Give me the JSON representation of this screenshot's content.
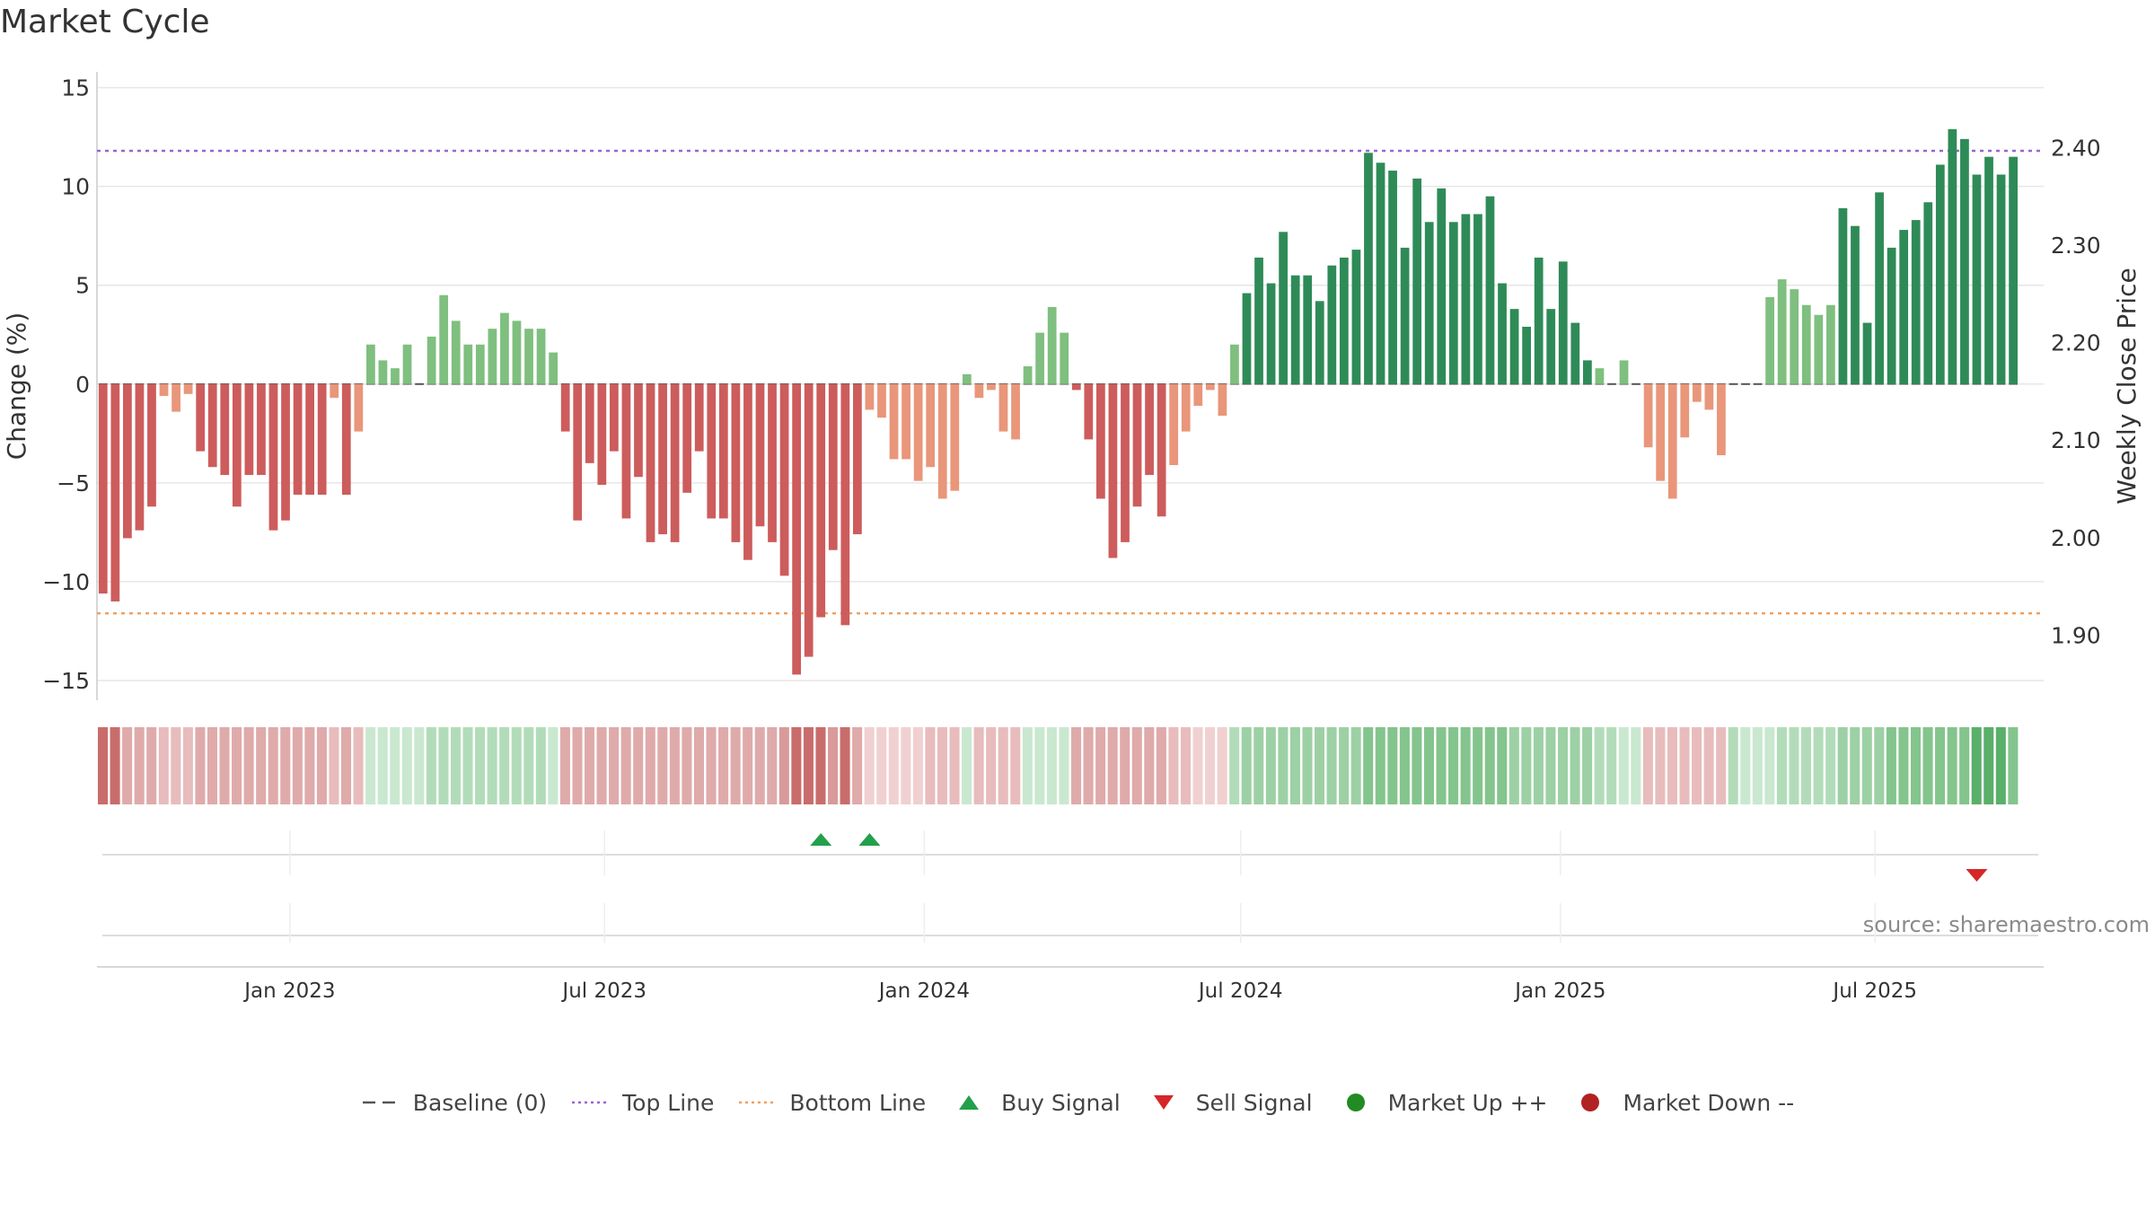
{
  "title": "Market Cycle",
  "source": "source: sharemaestro.com",
  "chart_data": {
    "type": "bar",
    "title": "Market Cycle",
    "ylabel_left": "Change (%)",
    "ylabel_right": "Weekly Close Price",
    "ylim_left": [
      -16,
      15.8
    ],
    "yticks_left": [
      15,
      10,
      5,
      0,
      -5,
      -10,
      -15
    ],
    "ytick_labels_left": [
      "15",
      "10",
      "5",
      "0",
      "−5",
      "−10",
      "−15"
    ],
    "ylim_right": [
      1.833,
      2.478
    ],
    "yticks_right": [
      2.4,
      2.3,
      2.2,
      2.1,
      2.0,
      1.9
    ],
    "ytick_labels_right": [
      "2.40",
      "2.30",
      "2.20",
      "2.10",
      "2.00",
      "1.90"
    ],
    "x_range": [
      "2022-09-12",
      "2025-10-06"
    ],
    "xticks": [
      "2023-01-01",
      "2023-07-01",
      "2024-01-01",
      "2024-07-01",
      "2025-01-01",
      "2025-07-01"
    ],
    "xtick_labels": [
      "Jan 2023",
      "Jul 2023",
      "Jan 2024",
      "Jul 2024",
      "Jan 2025",
      "Jul 2025"
    ],
    "start_week": "2022-09-12",
    "top_line": 11.8,
    "bottom_line": -11.6,
    "baseline": 0,
    "values": [
      -10.6,
      -11.0,
      -7.8,
      -7.4,
      -6.2,
      -0.6,
      -1.4,
      -0.5,
      -3.4,
      -4.2,
      -4.6,
      -6.2,
      -4.6,
      -4.6,
      -7.4,
      -6.9,
      -5.6,
      -5.6,
      -5.6,
      -0.7,
      -5.6,
      -2.4,
      2.0,
      1.2,
      0.8,
      2.0,
      0.0,
      2.4,
      4.5,
      3.2,
      2.0,
      2.0,
      2.8,
      3.6,
      3.2,
      2.8,
      2.8,
      1.6,
      -2.4,
      -6.9,
      -4.0,
      -5.1,
      -3.4,
      -6.8,
      -4.7,
      -8.0,
      -7.6,
      -8.0,
      -5.5,
      -3.4,
      -6.8,
      -6.8,
      -8.0,
      -8.9,
      -7.2,
      -8.0,
      -9.7,
      -14.7,
      -13.8,
      -11.8,
      -8.4,
      -12.2,
      -7.6,
      -1.3,
      -1.7,
      -3.8,
      -3.8,
      -4.9,
      -4.2,
      -5.8,
      -5.4,
      0.5,
      -0.7,
      -0.3,
      -2.4,
      -2.8,
      0.9,
      2.6,
      3.9,
      2.6,
      -0.3,
      -2.8,
      -5.8,
      -8.8,
      -8.0,
      -6.2,
      -4.6,
      -6.7,
      -4.1,
      -2.4,
      -1.1,
      -0.3,
      -1.6,
      2.0,
      4.6,
      6.4,
      5.1,
      7.7,
      5.5,
      5.5,
      4.2,
      6.0,
      6.4,
      6.8,
      11.7,
      11.2,
      10.8,
      6.9,
      10.4,
      8.2,
      9.9,
      8.2,
      8.6,
      8.6,
      9.5,
      5.1,
      3.8,
      2.9,
      6.4,
      3.8,
      6.2,
      3.1,
      1.2,
      0.8,
      0.0,
      1.2,
      0.0,
      -3.2,
      -4.9,
      -5.8,
      -2.7,
      -0.9,
      -1.3,
      -3.6,
      0.0,
      0.0,
      0.0,
      4.4,
      5.3,
      4.8,
      4.0,
      3.5,
      4.0,
      8.9,
      8.0,
      3.1,
      9.7,
      6.9,
      7.8,
      8.3,
      9.2,
      11.1,
      12.9,
      12.4,
      10.6,
      11.5,
      10.6,
      11.5
    ],
    "intensity": [
      5,
      5,
      3,
      3,
      3,
      2,
      2,
      2,
      3,
      3,
      3,
      3,
      3,
      3,
      3,
      3,
      3,
      3,
      3,
      2,
      3,
      2,
      1,
      1,
      1,
      1,
      1,
      2,
      2,
      2,
      2,
      2,
      2,
      2,
      2,
      2,
      2,
      1,
      3,
      3,
      3,
      3,
      3,
      3,
      3,
      3,
      3,
      3,
      3,
      3,
      3,
      3,
      3,
      3,
      3,
      3,
      4,
      5,
      5,
      5,
      4,
      5,
      3,
      1,
      1,
      1,
      1,
      1,
      2,
      2,
      2,
      1,
      2,
      2,
      2,
      2,
      1,
      1,
      1,
      1,
      3,
      3,
      3,
      3,
      3,
      3,
      3,
      3,
      2,
      2,
      1,
      1,
      1,
      2,
      3,
      3,
      3,
      3,
      3,
      3,
      3,
      3,
      3,
      3,
      4,
      4,
      4,
      4,
      4,
      4,
      4,
      4,
      4,
      4,
      4,
      4,
      3,
      3,
      3,
      3,
      3,
      3,
      3,
      2,
      2,
      1,
      1,
      2,
      2,
      2,
      2,
      2,
      2,
      2,
      2,
      1,
      1,
      1,
      2,
      2,
      2,
      2,
      2,
      3,
      3,
      3,
      3,
      4,
      4,
      4,
      4,
      4,
      4,
      4,
      5,
      5,
      5,
      4,
      4,
      4
    ],
    "buy_signals": [
      "2023-10-30",
      "2023-11-27"
    ],
    "sell_signals": [
      "2025-08-25"
    ],
    "legend": [
      "Baseline (0)",
      "Top Line",
      "Bottom Line",
      "Buy Signal",
      "Sell Signal",
      "Market Up ++",
      "Market Down --"
    ]
  },
  "colors": {
    "dark_green": "#2e8b57",
    "light_green": "#7fbf7f",
    "dark_red": "#cd5c5c",
    "light_red": "#e9967a",
    "top_line": "#9966cc",
    "bottom_line": "#f0a060",
    "buy": "#22a04b",
    "sell": "#d62728",
    "market_up": "#228b22",
    "market_down": "#b22222"
  },
  "legend": {
    "baseline": "Baseline (0)",
    "top_line": "Top Line",
    "bottom_line": "Bottom Line",
    "buy_signal": "Buy Signal",
    "sell_signal": "Sell Signal",
    "market_up": "Market Up ++",
    "market_down": "Market Down --"
  }
}
